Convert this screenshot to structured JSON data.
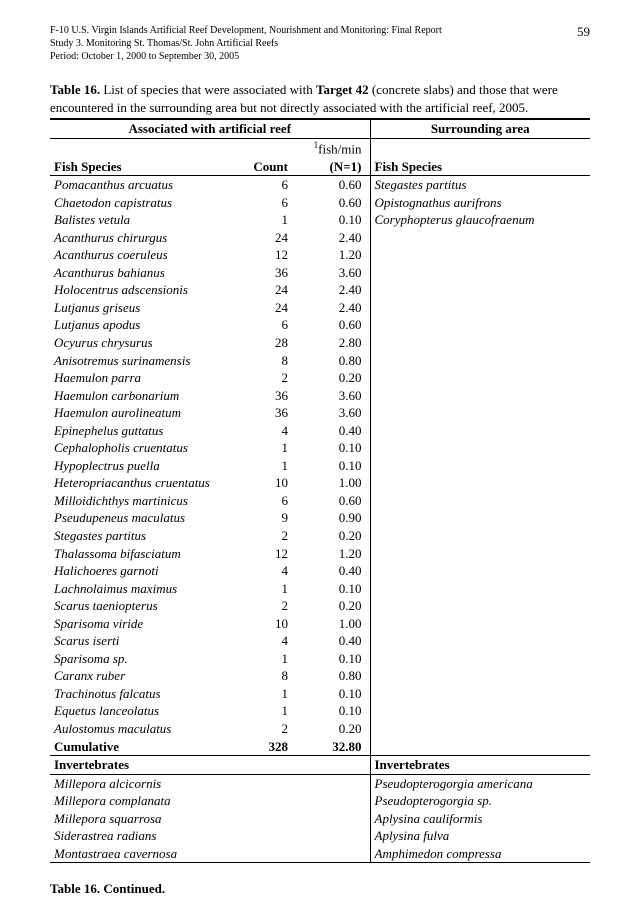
{
  "header": {
    "line1": "F-10 U.S. Virgin Islands Artificial Reef Development, Nourishment and Monitoring: Final Report",
    "line2": "Study 3.  Monitoring St. Thomas/St. John Artificial Reefs",
    "line3": "Period:  October 1, 2000 to September 30, 2005",
    "page_number": "59"
  },
  "caption": {
    "label": "Table 16.",
    "text_part1": "  List of species that were associated with ",
    "target": "Target 42",
    "text_part2": " (concrete slabs) and those that were encountered in the surrounding area but not directly associated with the artificial reef, 2005."
  },
  "table": {
    "section_left": "Associated with artificial reef",
    "section_right": "Surrounding area",
    "columns": {
      "species": "Fish Species",
      "count": "Count",
      "fishmin_sup": "1",
      "fishmin_line1": "fish/min",
      "fishmin_line2": "(N=1)",
      "species_right": "Fish Species"
    },
    "fish_rows": [
      {
        "sp": "Pomacanthus arcuatus",
        "count": "6",
        "rate": "0.60",
        "right": "Stegastes partitus"
      },
      {
        "sp": "Chaetodon capistratus",
        "count": "6",
        "rate": "0.60",
        "right": "Opistognathus aurifrons"
      },
      {
        "sp": "Balistes vetula",
        "count": "1",
        "rate": "0.10",
        "right": "Coryphopterus glaucofraenum"
      },
      {
        "sp": "Acanthurus chirurgus",
        "count": "24",
        "rate": "2.40",
        "right": ""
      },
      {
        "sp": "Acanthurus coeruleus",
        "count": "12",
        "rate": "1.20",
        "right": ""
      },
      {
        "sp": "Acanthurus bahianus",
        "count": "36",
        "rate": "3.60",
        "right": ""
      },
      {
        "sp": "Holocentrus adscensionis",
        "count": "24",
        "rate": "2.40",
        "right": ""
      },
      {
        "sp": "Lutjanus griseus",
        "count": "24",
        "rate": "2.40",
        "right": ""
      },
      {
        "sp": "Lutjanus apodus",
        "count": "6",
        "rate": "0.60",
        "right": ""
      },
      {
        "sp": "Ocyurus chrysurus",
        "count": "28",
        "rate": "2.80",
        "right": ""
      },
      {
        "sp": "Anisotremus surinamensis",
        "count": "8",
        "rate": "0.80",
        "right": ""
      },
      {
        "sp": "Haemulon parra",
        "count": "2",
        "rate": "0.20",
        "right": ""
      },
      {
        "sp": "Haemulon carbonarium",
        "count": "36",
        "rate": "3.60",
        "right": ""
      },
      {
        "sp": "Haemulon aurolineatum",
        "count": "36",
        "rate": "3.60",
        "right": ""
      },
      {
        "sp": "Epinephelus guttatus",
        "count": "4",
        "rate": "0.40",
        "right": ""
      },
      {
        "sp": "Cephalopholis cruentatus",
        "count": "1",
        "rate": "0.10",
        "right": ""
      },
      {
        "sp": "Hypoplectrus puella",
        "count": "1",
        "rate": "0.10",
        "right": ""
      },
      {
        "sp": "Heteropriacanthus cruentatus",
        "count": "10",
        "rate": "1.00",
        "right": ""
      },
      {
        "sp": "Milloidichthys martinicus",
        "count": "6",
        "rate": "0.60",
        "right": ""
      },
      {
        "sp": "Pseudupeneus maculatus",
        "count": "9",
        "rate": "0.90",
        "right": ""
      },
      {
        "sp": "Stegastes partitus",
        "count": "2",
        "rate": "0.20",
        "right": ""
      },
      {
        "sp": "Thalassoma bifasciatum",
        "count": "12",
        "rate": "1.20",
        "right": ""
      },
      {
        "sp": "Halichoeres garnoti",
        "count": "4",
        "rate": "0.40",
        "right": ""
      },
      {
        "sp": "Lachnolaimus maximus",
        "count": "1",
        "rate": "0.10",
        "right": ""
      },
      {
        "sp": "Scarus taeniopterus",
        "count": "2",
        "rate": "0.20",
        "right": ""
      },
      {
        "sp": "Sparisoma viride",
        "count": "10",
        "rate": "1.00",
        "right": ""
      },
      {
        "sp": "Scarus iserti",
        "count": "4",
        "rate": "0.40",
        "right": ""
      },
      {
        "sp": "Sparisoma sp.",
        "count": "1",
        "rate": "0.10",
        "right": ""
      },
      {
        "sp": "Caranx ruber",
        "count": "8",
        "rate": "0.80",
        "right": ""
      },
      {
        "sp": "Trachinotus falcatus",
        "count": "1",
        "rate": "0.10",
        "right": ""
      },
      {
        "sp": "Equetus lanceolatus",
        "count": "1",
        "rate": "0.10",
        "right": ""
      },
      {
        "sp": "Aulostomus maculatus",
        "count": "2",
        "rate": "0.20",
        "right": ""
      }
    ],
    "cumulative": {
      "label": "Cumulative",
      "count": "328",
      "rate": "32.80"
    },
    "invert_header": "Invertebrates",
    "invert_rows": [
      {
        "left": "Millepora alcicornis",
        "right": "Pseudopterogorgia americana"
      },
      {
        "left": "Millepora complanata",
        "right": "Pseudopterogorgia sp."
      },
      {
        "left": "Millepora squarrosa",
        "right": "Aplysina cauliformis"
      },
      {
        "left": "Siderastrea radians",
        "right": "Aplysina fulva"
      },
      {
        "left": "Montastraea cavernosa",
        "right": "Amphimedon compressa"
      }
    ]
  },
  "continued": "Table 16.  Continued."
}
